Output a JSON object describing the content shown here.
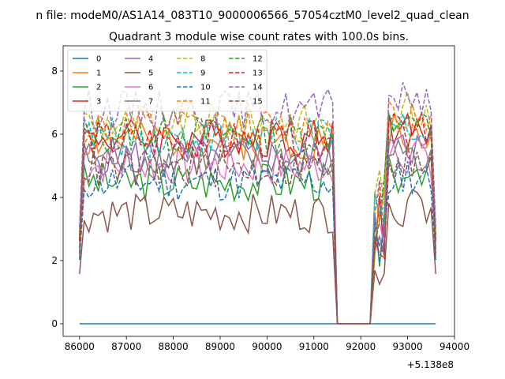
{
  "figure": {
    "suptitle": "n file: modeM0/AS1A14_083T10_9000006566_57054cztM0_level2_quad_clean",
    "title": "Quadrant 3 module wise count rates with 100.0s bins.",
    "x_offset_label": "+5.138e8"
  },
  "chart_data": {
    "type": "line",
    "title": "Quadrant 3 module wise count rates with 100.0s bins.",
    "xlabel": "",
    "ylabel": "",
    "x_offset": 513800000,
    "xlim": [
      85650,
      94000
    ],
    "ylim": [
      -0.4,
      8.8
    ],
    "x_ticks": [
      86000,
      87000,
      88000,
      89000,
      90000,
      91000,
      92000,
      93000,
      94000
    ],
    "x_tick_labels": [
      "86000",
      "87000",
      "88000",
      "89000",
      "90000",
      "91000",
      "92000",
      "93000",
      "94000"
    ],
    "y_ticks": [
      0,
      2,
      4,
      6,
      8
    ],
    "y_tick_labels": [
      "0",
      "2",
      "4",
      "6",
      "8"
    ],
    "grid": false,
    "legend_position": "upper-left",
    "legend_columns": 4,
    "time_range": [
      86000,
      93650
    ],
    "time_step": 100,
    "gaps": [
      [
        91500,
        92200
      ]
    ],
    "series": [
      {
        "name": "0",
        "color": "#1f77b4",
        "dash": "solid",
        "base": 0.0,
        "noise": 0.0,
        "seed": 1
      },
      {
        "name": "1",
        "color": "#ff7f0e",
        "dash": "solid",
        "base": 5.8,
        "noise": 0.35,
        "seed": 2
      },
      {
        "name": "2",
        "color": "#2ca02c",
        "dash": "solid",
        "base": 4.5,
        "noise": 0.35,
        "seed": 3
      },
      {
        "name": "3",
        "color": "#d62728",
        "dash": "solid",
        "base": 5.9,
        "noise": 0.35,
        "seed": 4
      },
      {
        "name": "4",
        "color": "#9467bd",
        "dash": "solid",
        "base": 5.3,
        "noise": 0.35,
        "seed": 5
      },
      {
        "name": "5",
        "color": "#8c564b",
        "dash": "solid",
        "base": 3.5,
        "noise": 0.35,
        "seed": 6
      },
      {
        "name": "6",
        "color": "#e377c2",
        "dash": "solid",
        "base": 5.0,
        "noise": 0.35,
        "seed": 7
      },
      {
        "name": "7",
        "color": "#7f7f7f",
        "dash": "solid",
        "base": 5.2,
        "noise": 0.35,
        "seed": 8
      },
      {
        "name": "8",
        "color": "#bcbd22",
        "dash": "dashed",
        "base": 6.4,
        "noise": 0.35,
        "seed": 9
      },
      {
        "name": "9",
        "color": "#17becf",
        "dash": "dashed",
        "base": 5.9,
        "noise": 0.35,
        "seed": 10
      },
      {
        "name": "10",
        "color": "#1f77b4",
        "dash": "dashed",
        "base": 4.5,
        "noise": 0.35,
        "seed": 11
      },
      {
        "name": "11",
        "color": "#ff7f0e",
        "dash": "dashed",
        "base": 6.2,
        "noise": 0.35,
        "seed": 12
      },
      {
        "name": "12",
        "color": "#2ca02c",
        "dash": "dashed",
        "base": 6.0,
        "noise": 0.35,
        "seed": 13
      },
      {
        "name": "13",
        "color": "#d62728",
        "dash": "dashed",
        "base": 5.8,
        "noise": 0.35,
        "seed": 14
      },
      {
        "name": "14",
        "color": "#9467bd",
        "dash": "dashed",
        "base": 6.8,
        "noise": 0.35,
        "seed": 15
      },
      {
        "name": "15",
        "color": "#8c564b",
        "dash": "dashed",
        "base": 4.9,
        "noise": 0.35,
        "seed": 16
      }
    ]
  }
}
